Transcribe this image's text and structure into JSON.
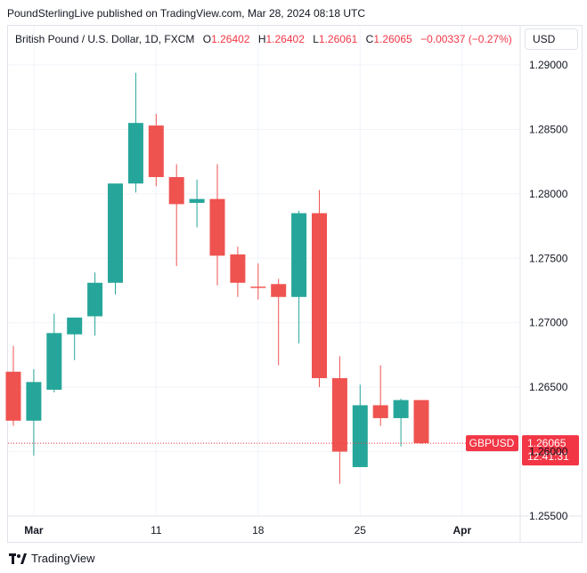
{
  "attribution": "PoundSterlingLive published on TradingView.com, Mar 28, 2024 08:18 UTC",
  "legend": {
    "symbol": "British Pound / U.S. Dollar, 1D, FXCM",
    "open_key": "O",
    "open": "1.26402",
    "high_key": "H",
    "high": "1.26402",
    "low_key": "L",
    "low": "1.26061",
    "close_key": "C",
    "close": "1.26065",
    "change": "−0.00337 (−0.27%)"
  },
  "currency_button": "USD",
  "footer": {
    "brand": "TradingView"
  },
  "colors": {
    "up": "#26a69a",
    "down": "#ef5350",
    "grid": "#f0f3fa",
    "label_bg": "#f23645"
  },
  "chart_data": {
    "type": "candlestick",
    "y_ticks": [
      "1.29000",
      "1.28500",
      "1.28000",
      "1.27500",
      "1.27000",
      "1.26500",
      "1.26000",
      "1.25500"
    ],
    "x_ticks": [
      {
        "label": "Mar",
        "index": 1
      },
      {
        "label": "11",
        "index": 7
      },
      {
        "label": "18",
        "index": 12
      },
      {
        "label": "25",
        "index": 17
      },
      {
        "label": "Apr",
        "index": 22
      }
    ],
    "ylim": [
      1.2545,
      1.2935
    ],
    "last_price": {
      "symbol": "GBPUSD",
      "price": "1.26065",
      "countdown": "12:41:31",
      "value": 1.26065
    },
    "candles": [
      {
        "o": 1.2662,
        "h": 1.2682,
        "l": 1.262,
        "c": 1.2624
      },
      {
        "o": 1.2624,
        "h": 1.2664,
        "l": 1.2597,
        "c": 1.2654
      },
      {
        "o": 1.2648,
        "h": 1.2707,
        "l": 1.2646,
        "c": 1.2692
      },
      {
        "o": 1.2691,
        "h": 1.2703,
        "l": 1.2671,
        "c": 1.2704
      },
      {
        "o": 1.2705,
        "h": 1.2739,
        "l": 1.269,
        "c": 1.2731
      },
      {
        "o": 1.2731,
        "h": 1.2805,
        "l": 1.2722,
        "c": 1.2808
      },
      {
        "o": 1.2808,
        "h": 1.2894,
        "l": 1.2801,
        "c": 1.2855
      },
      {
        "o": 1.2853,
        "h": 1.2862,
        "l": 1.2806,
        "c": 1.2813
      },
      {
        "o": 1.2813,
        "h": 1.2823,
        "l": 1.2744,
        "c": 1.2792
      },
      {
        "o": 1.2793,
        "h": 1.2811,
        "l": 1.2774,
        "c": 1.2796
      },
      {
        "o": 1.2796,
        "h": 1.2823,
        "l": 1.2729,
        "c": 1.2752
      },
      {
        "o": 1.2753,
        "h": 1.2759,
        "l": 1.272,
        "c": 1.2731
      },
      {
        "o": 1.2728,
        "h": 1.2746,
        "l": 1.2718,
        "c": 1.2727
      },
      {
        "o": 1.273,
        "h": 1.2734,
        "l": 1.2667,
        "c": 1.272
      },
      {
        "o": 1.272,
        "h": 1.2787,
        "l": 1.2684,
        "c": 1.2785
      },
      {
        "o": 1.2785,
        "h": 1.2803,
        "l": 1.265,
        "c": 1.2657
      },
      {
        "o": 1.2657,
        "h": 1.2674,
        "l": 1.2575,
        "c": 1.26
      },
      {
        "o": 1.2588,
        "h": 1.2652,
        "l": 1.2588,
        "c": 1.2636
      },
      {
        "o": 1.2636,
        "h": 1.2667,
        "l": 1.262,
        "c": 1.2626
      },
      {
        "o": 1.2626,
        "h": 1.2641,
        "l": 1.2604,
        "c": 1.264
      },
      {
        "o": 1.264,
        "h": 1.264,
        "l": 1.2606,
        "c": 1.26065
      }
    ]
  }
}
